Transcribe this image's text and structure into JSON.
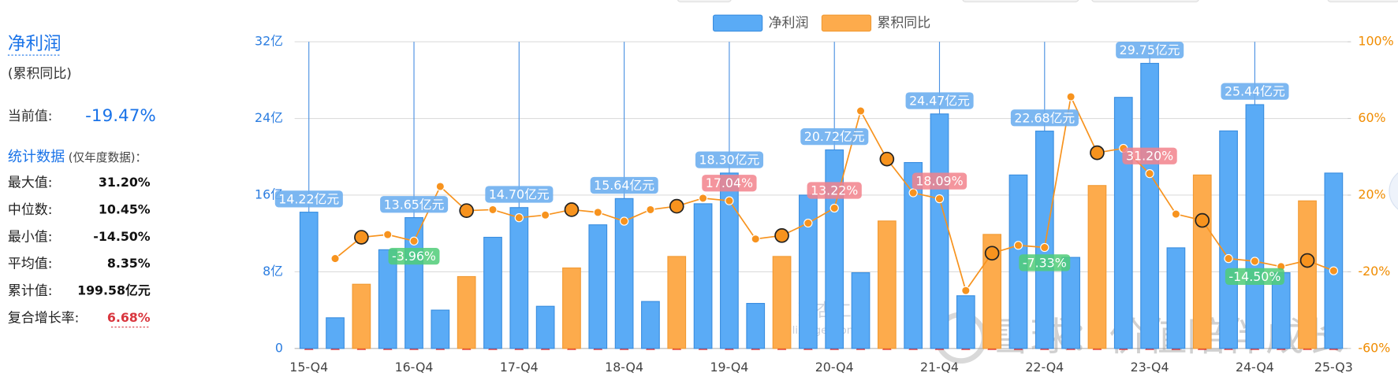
{
  "panel": {
    "title": "净利润",
    "subtitle": "(累积同比)",
    "current_label": "当前值:",
    "current_value": "-19.47%",
    "stats_title": "统计数据",
    "stats_note": "(仅年度数据)：",
    "stats": [
      [
        "最大值:",
        "31.20%"
      ],
      [
        "中位数:",
        "10.45%"
      ],
      [
        "最小值:",
        "-14.50%"
      ],
      [
        "平均值:",
        "8.35%"
      ],
      [
        "累计值:",
        "199.58亿元"
      ],
      [
        "复合增长率:",
        "6.68%"
      ]
    ]
  },
  "watermarks": [
    "理杏仁",
    "lixinger.com",
    "雪球：价值陪伴成长"
  ],
  "chart_data": {
    "type": "combo",
    "categories": [
      "15-Q4",
      null,
      null,
      null,
      "16-Q4",
      null,
      null,
      null,
      "17-Q4",
      null,
      null,
      null,
      "18-Q4",
      null,
      null,
      null,
      "19-Q4",
      null,
      null,
      null,
      "20-Q4",
      null,
      null,
      null,
      "21-Q4",
      null,
      null,
      null,
      "22-Q4",
      null,
      null,
      null,
      "23-Q4",
      null,
      null,
      null,
      "24-Q4",
      null,
      null,
      "25-Q3"
    ],
    "ylim": [
      0,
      32
    ],
    "yticks": [
      {
        "value": 0,
        "label": "0"
      },
      {
        "value": 8,
        "label": "8亿"
      },
      {
        "value": 16,
        "label": "16亿"
      },
      {
        "value": 24,
        "label": "24亿"
      },
      {
        "value": 32,
        "label": "32亿"
      }
    ],
    "y2lim": [
      -60,
      100
    ],
    "y2ticks": [
      {
        "value": -60,
        "label": "-60%"
      },
      {
        "value": -20,
        "label": "-20%"
      },
      {
        "value": 20,
        "label": "20%"
      },
      {
        "value": 60,
        "label": "60%"
      },
      {
        "value": 100,
        "label": "100%"
      }
    ],
    "grid": true,
    "series": [
      {
        "name": "净利润",
        "type": "bar",
        "color": "#5aabf6",
        "colors": [
          "#5aabf6",
          "#5aabf6",
          "#fdab4c",
          "#5aabf6",
          "#5aabf6",
          "#5aabf6",
          "#fdab4c",
          "#5aabf6",
          "#5aabf6",
          "#5aabf6",
          "#fdab4c",
          "#5aabf6",
          "#5aabf6",
          "#5aabf6",
          "#fdab4c",
          "#5aabf6",
          "#5aabf6",
          "#5aabf6",
          "#fdab4c",
          "#5aabf6",
          "#5aabf6",
          "#5aabf6",
          "#fdab4c",
          "#5aabf6",
          "#5aabf6",
          "#5aabf6",
          "#fdab4c",
          "#5aabf6",
          "#5aabf6",
          "#5aabf6",
          "#fdab4c",
          "#5aabf6",
          "#5aabf6",
          "#5aabf6",
          "#fdab4c",
          "#5aabf6",
          "#5aabf6",
          "#5aabf6",
          "#fdab4c",
          "#5aabf6"
        ],
        "values": [
          14.22,
          3.2,
          6.7,
          10.3,
          13.65,
          4.0,
          7.5,
          11.6,
          14.7,
          4.4,
          8.4,
          12.9,
          15.64,
          4.9,
          9.6,
          15.1,
          18.3,
          4.7,
          9.6,
          16.0,
          20.72,
          7.9,
          13.3,
          19.4,
          24.47,
          5.5,
          11.9,
          18.1,
          22.68,
          9.5,
          17.0,
          26.2,
          29.75,
          10.5,
          18.1,
          22.7,
          25.44,
          7.9,
          15.4,
          18.3
        ],
        "value_labels": [
          "14.22亿元",
          null,
          null,
          null,
          "13.65亿元",
          null,
          null,
          null,
          "14.70亿元",
          null,
          null,
          null,
          "15.64亿元",
          null,
          null,
          null,
          "18.30亿元",
          null,
          null,
          null,
          "20.72亿元",
          null,
          null,
          null,
          "24.47亿元",
          null,
          null,
          null,
          "22.68亿元",
          null,
          null,
          null,
          "29.75亿元",
          null,
          null,
          null,
          "25.44亿元",
          null,
          null,
          null
        ]
      },
      {
        "name": "累积同比",
        "type": "line",
        "axis": "y2",
        "color": "#f7931e",
        "values": [
          null,
          -13.1,
          -2.0,
          -0.6,
          -3.96,
          24.5,
          11.9,
          12.4,
          8.2,
          9.6,
          12.4,
          11.0,
          6.4,
          12.4,
          14.2,
          18.4,
          17.04,
          -2.9,
          -1.1,
          5.4,
          13.22,
          63.9,
          38.8,
          21.2,
          18.09,
          -29.8,
          -10.3,
          -6.2,
          -7.33,
          71.3,
          42.1,
          44.4,
          31.2,
          10.1,
          6.8,
          -13.1,
          -14.5,
          -17.3,
          -14.1,
          -19.47
        ],
        "value_labels": [
          null,
          null,
          null,
          null,
          "-3.96%",
          null,
          null,
          null,
          null,
          null,
          null,
          null,
          null,
          null,
          null,
          null,
          "17.04%",
          null,
          null,
          null,
          "13.22%",
          null,
          null,
          null,
          "18.09%",
          null,
          null,
          null,
          "-7.33%",
          null,
          null,
          null,
          "31.20%",
          null,
          null,
          null,
          "-14.50%",
          null,
          null,
          null
        ]
      }
    ]
  }
}
